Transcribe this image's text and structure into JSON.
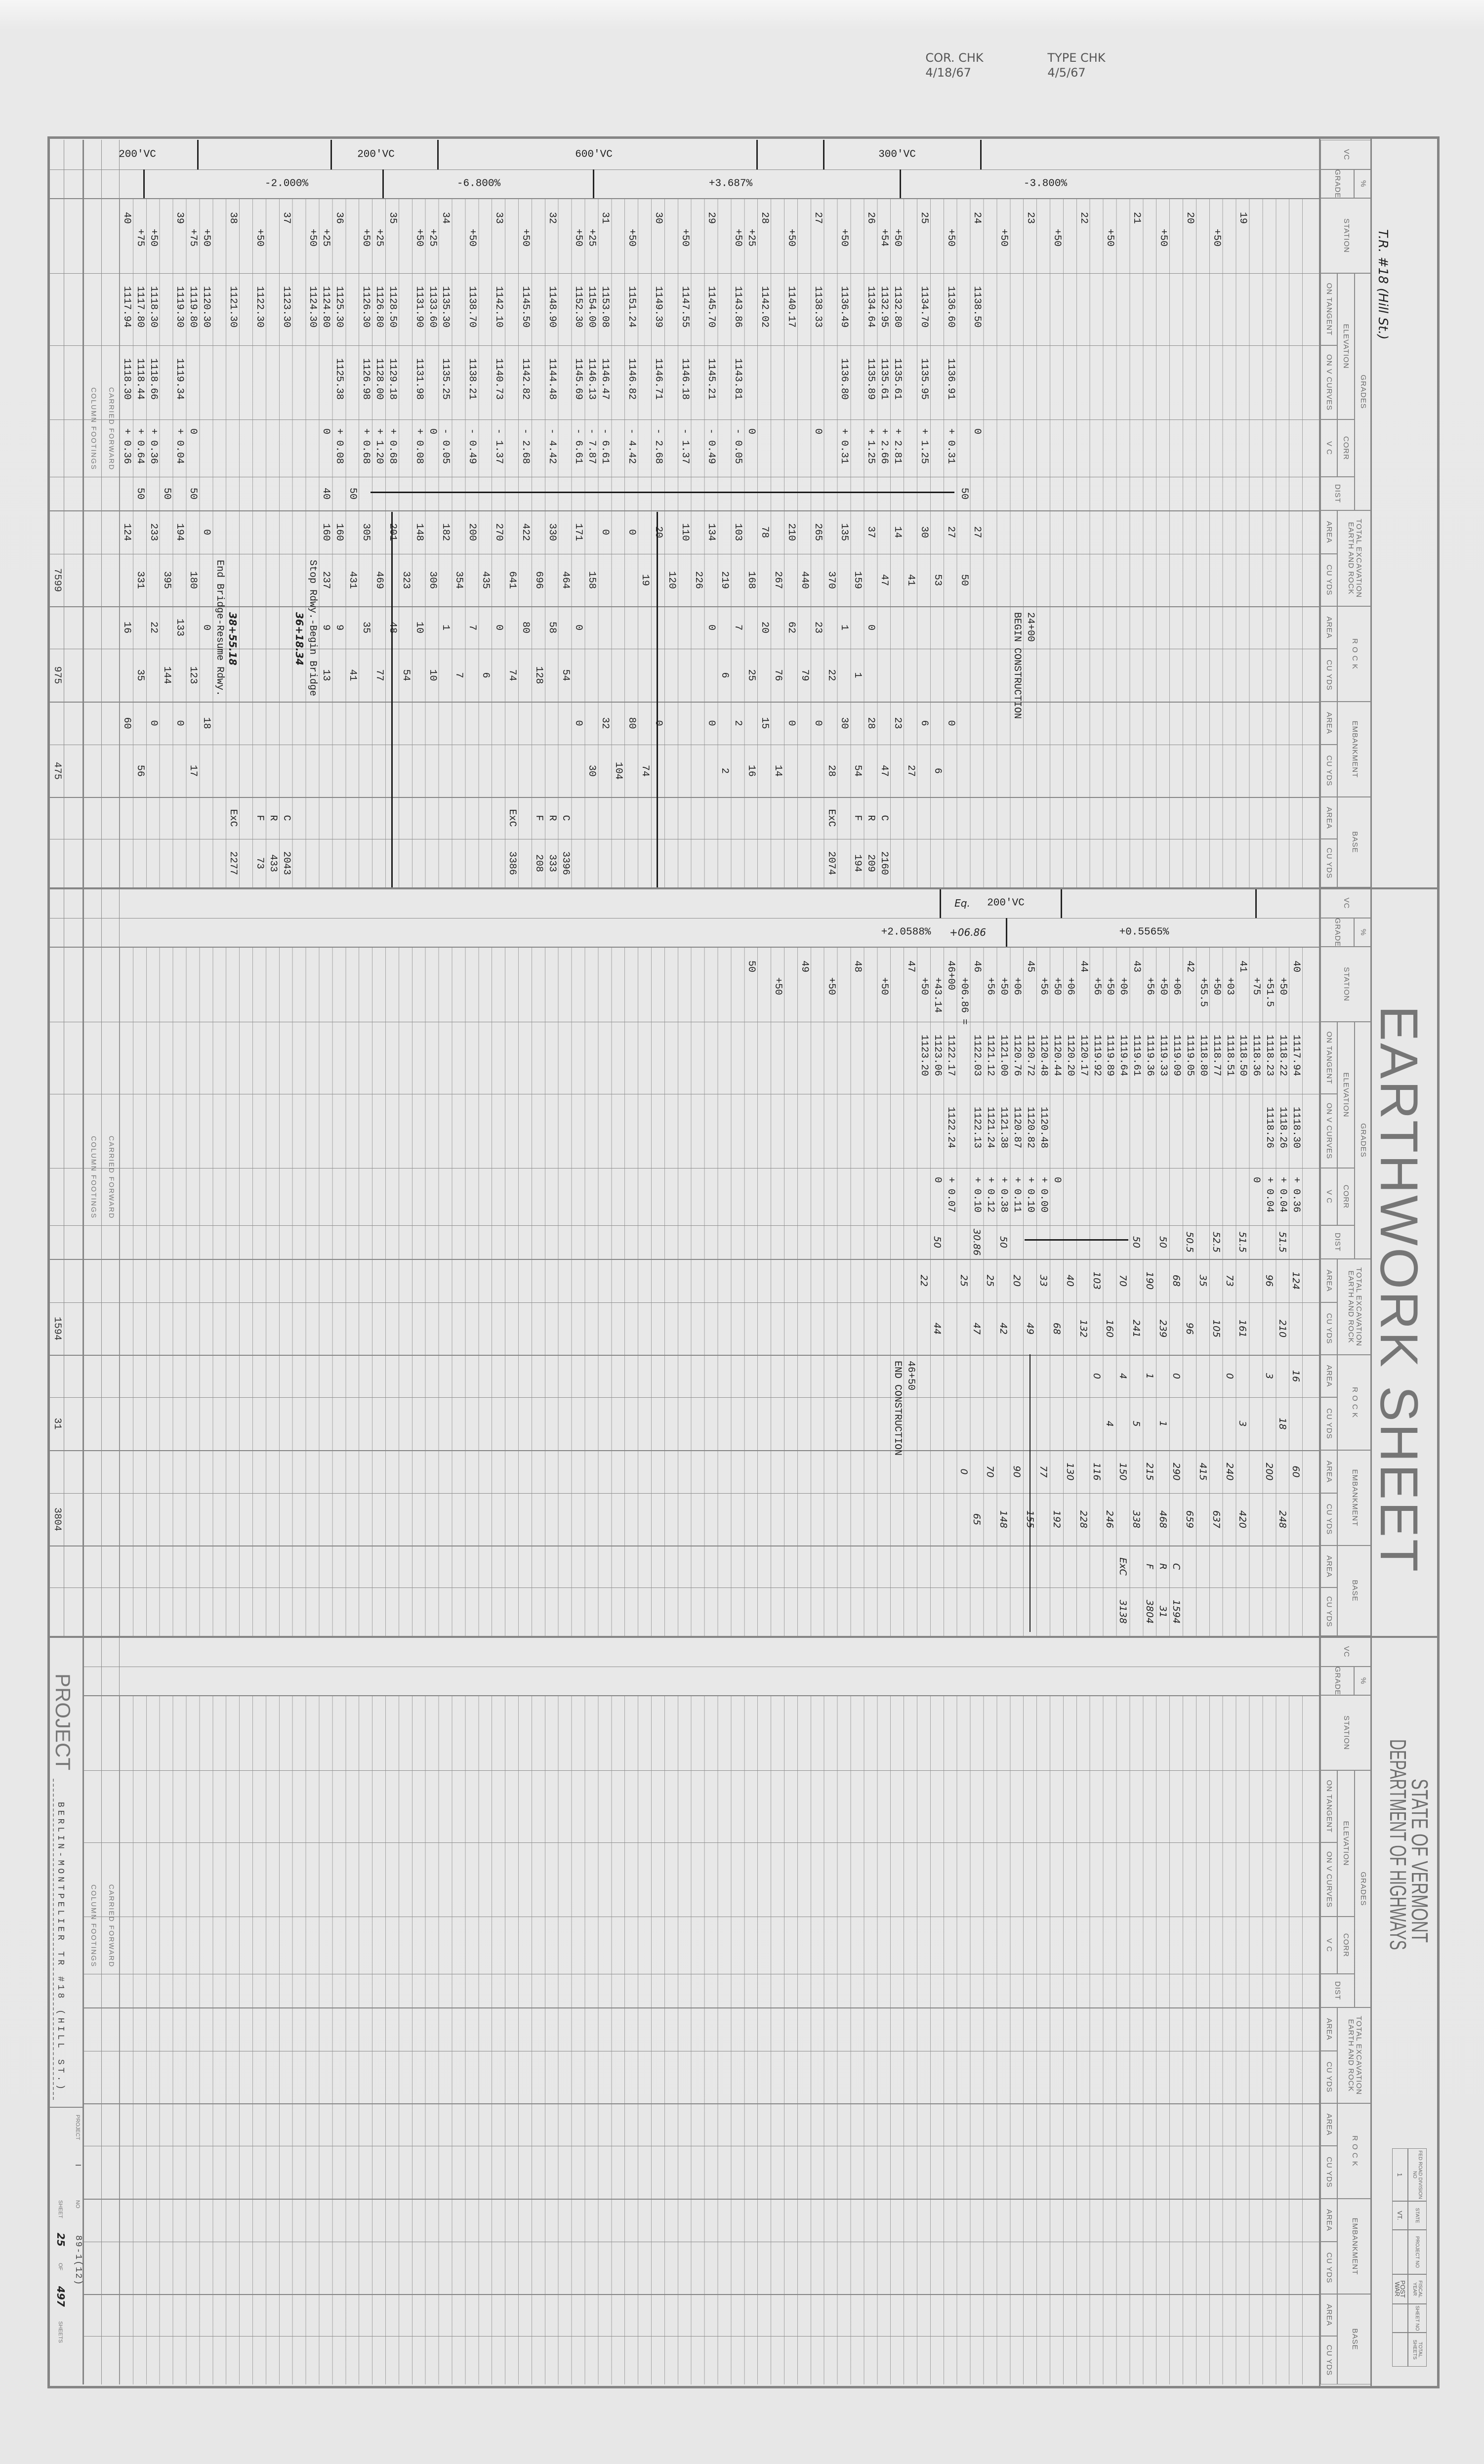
{
  "stamps": {
    "cor_check": "COR. CHK",
    "cor_check_date": "4/18/67",
    "type_check": "TYPE CHK",
    "type_check_date": "4/5/67"
  },
  "title": "EARTHWORK SHEET",
  "sheet_subtitle": "T.R. #18 (Hill St.)",
  "agency": {
    "line1": "STATE OF VERMONT",
    "line2": "DEPARTMENT OF HIGHWAYS"
  },
  "info_box": {
    "headers": [
      "FED ROAD DIVISION NO",
      "STATE",
      "PROJECT NO",
      "FISCAL YEAR",
      "SHEET NO",
      "TOTAL SHEETS"
    ],
    "values": [
      "1",
      "VT.",
      "",
      "POST WAR",
      "",
      ""
    ]
  },
  "header": {
    "vc": "VC",
    "grade_pct": "%",
    "grade": "GRADE",
    "station": "STATION",
    "grades": "GRADES",
    "elevation": "ELEVATION",
    "on_tangent": "ON TANGENT",
    "on_v_curves": "ON V CURVES",
    "corr": "CORR",
    "vc_sub": "V C",
    "dist": "DIST",
    "total_excavation": "TOTAL EXCAVATION",
    "earth_and_rock": "EARTH AND ROCK",
    "area": "AREA",
    "cu_yds": "CU YDS",
    "rock": "R O C K",
    "embankment": "EMBANKMENT",
    "base": "BASE"
  },
  "footer": {
    "carried_forward": "CARRIED FORWARD",
    "column_footings": "COLUMN FOOTINGS"
  },
  "project": {
    "label": "PROJECT",
    "name": "BERLIN-MONTPELIER  TR #18 (HILL ST.)",
    "project_label": "PROJECT",
    "project_value": "I",
    "no_label": "NO",
    "no_value": "89-1(12)",
    "sheet_label": "SHEET",
    "sheet_no": "25",
    "of_label": "OF",
    "total_sheets": "497",
    "sheets_label": "SHEETS"
  },
  "colors": {
    "ink": "#1e1e1e",
    "form_lines": "#8c8c8c",
    "form_text": "#6c6c6c",
    "paper": "#e8e8e8"
  },
  "sections": [
    {
      "vc_labels": [
        "300'VC",
        "600'VC",
        "200'VC",
        "200'VC"
      ],
      "grade_labels": [
        "-3.800%",
        "+3.687%",
        "-6.800%",
        "-2.000%"
      ],
      "totals": {
        "tecy": "7599",
        "rcy": "975",
        "ecy": "475"
      },
      "rows": [
        {},
        {},
        {},
        {},
        {},
        {
          "st": "19"
        },
        {},
        {
          "st": "+50"
        },
        {},
        {
          "st": "20"
        },
        {},
        {
          "st": "+50"
        },
        {},
        {
          "st": "21"
        },
        {},
        {
          "st": "+50"
        },
        {},
        {
          "st": "22"
        },
        {},
        {
          "st": "+50"
        },
        {},
        {
          "st": "23",
          "note": "24+00",
          "note_col": "rock_area"
        },
        {
          "note": "BEGIN CONSTRUCTION",
          "note_col": "rock_area"
        },
        {
          "st": "+50"
        },
        {},
        {
          "st": "24",
          "tan": "1138.50",
          "corr": "0",
          "tea": "27"
        },
        {
          "dist": "50",
          "tecy": "50"
        },
        {
          "st": "+50",
          "tan": "1136.60",
          "vc": "1136.91",
          "corr": "+ 0.31",
          "tea": "27",
          "ea": "0"
        },
        {
          "tecy": "53",
          "ecy": "6"
        },
        {
          "st": "25",
          "tan": "1134.70",
          "vc": "1135.95",
          "corr": "+ 1.25",
          "tea": "30",
          "ea": "6"
        },
        {
          "tecy": "41",
          "ecy": "27"
        },
        {
          "st": "+50",
          "tan": "1132.80",
          "vc": "1135.61",
          "corr": "+ 2.81",
          "tea": "14",
          "ea": "23"
        },
        {
          "st": "+54",
          "tan": "1132.95",
          "vc": "1135.61",
          "corr": "+ 2.66",
          "tecy": "47",
          "ecy": "47",
          "ba": "C",
          "bcy": "2160"
        },
        {
          "st": "26",
          "tan": "1134.64",
          "vc": "1135.89",
          "corr": "+ 1.25",
          "tea": "37",
          "ra": "0",
          "ea": "28",
          "ba": "R",
          "bcy": "209"
        },
        {
          "tecy": "159",
          "rcy": "1",
          "ecy": "54",
          "ba": "F",
          "bcy": "194"
        },
        {
          "st": "+50",
          "tan": "1136.49",
          "vc": "1136.80",
          "corr": "+ 0.31",
          "tea": "135",
          "ra": "1",
          "ea": "30"
        },
        {
          "tecy": "370",
          "rcy": "22",
          "ecy": "28",
          "ba": "ExC",
          "bcy": "2074"
        },
        {
          "st": "27",
          "tan": "1138.33",
          "corr": "0",
          "tea": "265",
          "ra": "23",
          "ea": "0"
        },
        {
          "tecy": "440",
          "rcy": "79"
        },
        {
          "st": "+50",
          "tan": "1140.17",
          "tea": "210",
          "ra": "62",
          "ea": "0"
        },
        {
          "tecy": "267",
          "rcy": "76",
          "ecy": "14"
        },
        {
          "st": "28",
          "tan": "1142.02",
          "tea": "78",
          "ra": "20",
          "ea": "15"
        },
        {
          "st": "+25",
          "corr": "0",
          "tecy": "168",
          "rcy": "25",
          "ecy": "16"
        },
        {
          "st": "+50",
          "tan": "1143.86",
          "vc": "1143.81",
          "corr": "- 0.05",
          "tea": "103",
          "ra": "7",
          "ea": "2"
        },
        {
          "tecy": "219",
          "rcy": "6",
          "ecy": "2"
        },
        {
          "st": "29",
          "tan": "1145.70",
          "vc": "1145.21",
          "corr": "- 0.49",
          "tea": "134",
          "ra": "0",
          "ea": "0"
        },
        {
          "tecy": "226"
        },
        {
          "st": "+50",
          "tan": "1147.55",
          "vc": "1146.18",
          "corr": "- 1.37",
          "tea": "110"
        },
        {
          "tecy": "120"
        },
        {
          "st": "30",
          "tan": "1149.39",
          "vc": "1146.71",
          "corr": "- 2.68",
          "tea": "20",
          "ea": "0"
        },
        {
          "tecy": "19",
          "ecy": "74"
        },
        {
          "st": "+50",
          "tan": "1151.24",
          "vc": "1146.82",
          "corr": "- 4.42",
          "tea": "0",
          "ea": "80"
        },
        {
          "ecy": "104"
        },
        {
          "st": "31",
          "tan": "1153.08",
          "vc": "1146.47",
          "corr": "- 6.61",
          "tea": "0",
          "ea": "32"
        },
        {
          "st": "+25",
          "tan": "1154.00",
          "vc": "1146.13",
          "corr": "- 7.87",
          "tecy": "158",
          "ecy": "30"
        },
        {
          "st": "+50",
          "tan": "1152.30",
          "vc": "1145.69",
          "corr": "- 6.61",
          "tea": "171",
          "ra": "0",
          "ea": "0"
        },
        {
          "tecy": "464",
          "rcy": "54",
          "ba": "C",
          "bcy": "3396"
        },
        {
          "st": "32",
          "tan": "1148.90",
          "vc": "1144.48",
          "corr": "- 4.42",
          "tea": "330",
          "ra": "58",
          "ba": "R",
          "bcy": "333"
        },
        {
          "tecy": "696",
          "rcy": "128",
          "ba": "F",
          "bcy": "208"
        },
        {
          "st": "+50",
          "tan": "1145.50",
          "vc": "1142.82",
          "corr": "- 2.68",
          "tea": "422",
          "ra": "80"
        },
        {
          "tecy": "641",
          "rcy": "74",
          "ba": "ExC",
          "bcy": "3386"
        },
        {
          "st": "33",
          "tan": "1142.10",
          "vc": "1140.73",
          "corr": "- 1.37",
          "tea": "270",
          "ra": "0"
        },
        {
          "tecy": "435",
          "rcy": "6"
        },
        {
          "st": "+50",
          "tan": "1138.70",
          "vc": "1138.21",
          "corr": "- 0.49",
          "tea": "200",
          "ra": "7"
        },
        {
          "tecy": "354",
          "rcy": "7"
        },
        {
          "st": "34",
          "tan": "1135.30",
          "vc": "1135.25",
          "corr": "- 0.05",
          "tea": "182",
          "ra": "1"
        },
        {
          "st": "+25",
          "tan": "1133.60",
          "corr": "0",
          "tecy": "306",
          "rcy": "10"
        },
        {
          "st": "+50",
          "tan": "1131.90",
          "vc": "1131.98",
          "corr": "+ 0.08",
          "tea": "148",
          "ra": "10"
        },
        {
          "tecy": "323",
          "rcy": "54"
        },
        {
          "st": "35",
          "tan": "1128.50",
          "vc": "1129.18",
          "corr": "+ 0.68",
          "tea": "201",
          "ra": "48"
        },
        {
          "st": "+25",
          "tan": "1126.80",
          "vc": "1128.00",
          "corr": "+ 1.20",
          "tecy": "469",
          "rcy": "77"
        },
        {
          "st": "+50",
          "tan": "1126.30",
          "vc": "1126.98",
          "corr": "+ 0.68",
          "tea": "305",
          "ra": "35"
        },
        {
          "dist": "50",
          "tecy": "431",
          "rcy": "41"
        },
        {
          "st": "36",
          "tan": "1125.30",
          "vc": "1125.38",
          "corr": "+ 0.08",
          "tea": "160",
          "ra": "9"
        },
        {
          "st": "+25",
          "tan": "1124.80",
          "corr": "0",
          "dist": "40",
          "tea": "160",
          "tecy": "237",
          "ra": "9",
          "rcy": "13"
        },
        {
          "st": "+50",
          "tan": "1124.30",
          "note": "Stop Rdwy.-Begin Bridge",
          "note_col": "te_cy"
        },
        {
          "hand_note": "36+18.34",
          "note_col": "rock_area"
        },
        {
          "st": "37",
          "tan": "1123.30",
          "ba": "C",
          "bcy": "2043"
        },
        {
          "ba": "R",
          "bcy": "433"
        },
        {
          "st": "+50",
          "tan": "1122.30",
          "ba": "F",
          "bcy": "73"
        },
        {},
        {
          "st": "38",
          "tan": "1121.30",
          "ba": "ExC",
          "bcy": "2277",
          "hand_note": "38+55.18",
          "note_col": "rock_area"
        },
        {
          "note": "End Bridge-Resume Rdwy.",
          "note_col": "te_cy"
        },
        {
          "st": "+50",
          "tan": "1120.30",
          "tea": "0",
          "ra": "0",
          "ea": "18"
        },
        {
          "st": "+75",
          "tan": "1119.80",
          "corr": "0",
          "dist": "50",
          "tecy": "180",
          "rcy": "123",
          "ecy": "17"
        },
        {
          "st": "39",
          "tan": "1119.30",
          "vc": "1119.34",
          "corr": "+ 0.04",
          "tea": "194",
          "ra": "133",
          "ea": "0"
        },
        {
          "dist": "50",
          "tecy": "395",
          "rcy": "144"
        },
        {
          "st": "+50",
          "tan": "1118.30",
          "vc": "1118.66",
          "corr": "+ 0.36",
          "tea": "233",
          "ra": "22",
          "ea": "0"
        },
        {
          "st": "+75",
          "tan": "1117.80",
          "vc": "1118.44",
          "corr": "+ 0.64",
          "dist": "50",
          "tecy": "331",
          "rcy": "35",
          "ecy": "56"
        },
        {
          "st": "40",
          "tan": "1117.94",
          "vc": "1118.30",
          "corr": "+ 0.36",
          "tea": "124",
          "ra": "16",
          "ea": "60"
        }
      ]
    },
    {
      "vc_labels": [
        "200'VC",
        "Eq."
      ],
      "grade_labels": [
        "+0.5565%",
        "+06.86",
        "+2.0588%"
      ],
      "totals": {
        "tecy": "1594",
        "rcy": "31",
        "ecy": "3804"
      },
      "rows": [
        {},
        {
          "st": "40",
          "tan": "1117.94",
          "vc": "1118.30",
          "corr": "+ 0.36",
          "tea": "124",
          "ra": "16",
          "ea": "60"
        },
        {
          "st": "+50",
          "tan": "1118.22",
          "vc": "1118.26",
          "corr": "+ 0.04",
          "dist": "51.5",
          "tecy": "210",
          "rcy": "18",
          "ecy": "248"
        },
        {
          "st": "+51.5",
          "tan": "1118.23",
          "vc": "1118.26",
          "corr": "+ 0.04",
          "tea": "96",
          "ra": "3",
          "ea": "200"
        },
        {
          "st": "+75",
          "tan": "1118.36",
          "corr": "0"
        },
        {
          "st": "41",
          "tan": "1118.50",
          "dist": "51.5",
          "tecy": "161",
          "rcy": "3",
          "ecy": "420"
        },
        {
          "st": "+03",
          "tan": "1118.51",
          "tea": "73",
          "ra": "0",
          "ea": "240"
        },
        {
          "st": "+50",
          "tan": "1118.77",
          "dist": "52.5",
          "tecy": "105",
          "ecy": "637"
        },
        {
          "st": "+55.5",
          "tan": "1118.80",
          "tea": "35",
          "ea": "415"
        },
        {
          "st": "42",
          "tan": "1119.05",
          "dist": "50.5",
          "tecy": "96",
          "ecy": "659"
        },
        {
          "st": "+06",
          "tan": "1119.09",
          "tea": "68",
          "ra": "0",
          "ea": "290",
          "ba": "C",
          "bcy": "1594"
        },
        {
          "st": "+50",
          "tan": "1119.33",
          "dist": "50",
          "tecy": "239",
          "rcy": "1",
          "ecy": "468",
          "ba": "R",
          "bcy": "31"
        },
        {
          "st": "+56",
          "tan": "1119.36",
          "tea": "190",
          "ra": "1",
          "ea": "215",
          "ba": "F",
          "bcy": "3804"
        },
        {
          "st": "43",
          "tan": "1119.61",
          "dist": "50",
          "tecy": "241",
          "rcy": "5",
          "ecy": "338"
        },
        {
          "st": "+06",
          "tan": "1119.64",
          "tea": "70",
          "ra": "4",
          "ea": "150",
          "ba": "ExC",
          "bcy": "3138"
        },
        {
          "st": "+50",
          "tan": "1119.89",
          "tecy": "160",
          "rcy": "4",
          "ecy": "246"
        },
        {
          "st": "+56",
          "tan": "1119.92",
          "tea": "103",
          "ra": "0",
          "ea": "116"
        },
        {
          "st": "44",
          "tan": "1120.17",
          "tecy": "132",
          "ecy": "228"
        },
        {
          "st": "+06",
          "tan": "1120.20",
          "tea": "40",
          "ea": "130"
        },
        {
          "st": "+50",
          "tan": "1120.44",
          "corr": "0",
          "tecy": "68",
          "ecy": "192"
        },
        {
          "st": "+56",
          "tan": "1120.48",
          "vc": "1120.48",
          "corr": "+ 0.00",
          "tea": "33",
          "ea": "77"
        },
        {
          "st": "45",
          "tan": "1120.72",
          "vc": "1120.82",
          "corr": "+ 0.10",
          "tecy": "49",
          "ecy": "155"
        },
        {
          "st": "+06",
          "tan": "1120.76",
          "vc": "1120.87",
          "corr": "+ 0.11",
          "tea": "20",
          "ea": "90"
        },
        {
          "st": "+50",
          "tan": "1121.00",
          "vc": "1121.38",
          "corr": "+ 0.38",
          "dist": "50",
          "tecy": "42",
          "ecy": "148"
        },
        {
          "st": "+56",
          "tan": "1121.12",
          "vc": "1121.24",
          "corr": "+ 0.12",
          "tea": "25",
          "ea": "70"
        },
        {
          "st": "46",
          "tan": "1122.03",
          "vc": "1122.13",
          "corr": "+ 0.10",
          "dist": "30.86",
          "tecy": "47",
          "ecy": "65"
        },
        {
          "st": "+06.86 =",
          "tea": "25",
          "ea": "0"
        },
        {
          "st": "46+00",
          "tan": "1122.17",
          "vc": "1122.24",
          "corr": "+ 0.07"
        },
        {
          "st": "+43.14",
          "tan": "1123.06",
          "corr": "0",
          "dist": "50",
          "tecy": "44"
        },
        {
          "st": "+50",
          "tan": "1123.20",
          "tea": "22"
        },
        {
          "st": "47",
          "note": "46+50",
          "note_col": "rock_area"
        },
        {
          "note": "END CONSTRUCTION",
          "note_col": "rock_area"
        },
        {
          "st": "+50"
        },
        {},
        {
          "st": "48"
        },
        {},
        {
          "st": "+50"
        },
        {},
        {
          "st": "49"
        },
        {},
        {
          "st": "+50"
        },
        {},
        {
          "st": "50"
        }
      ]
    },
    {
      "vc_labels": [],
      "grade_labels": [],
      "totals": {},
      "rows": []
    }
  ]
}
